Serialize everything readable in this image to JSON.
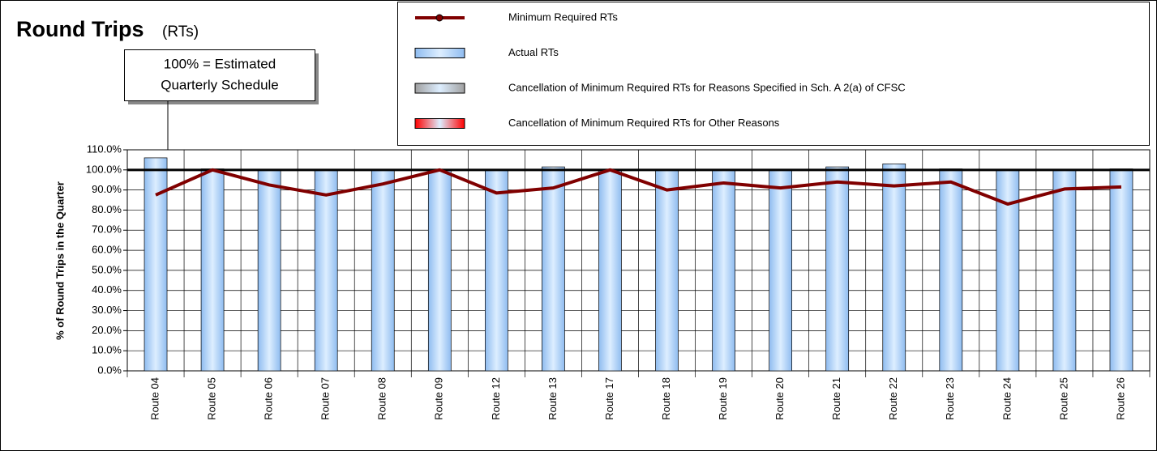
{
  "chart_data": {
    "type": "bar",
    "title": "Round Trips",
    "subtitle": "(RTs)",
    "y_axis_label": "% of Round Trips in the Quarter",
    "annotation": [
      "100% = Estimated",
      "Quarterly Schedule"
    ],
    "reference_line": 100,
    "categories": [
      "Route 04",
      "Route 05",
      "Route 06",
      "Route 07",
      "Route 08",
      "Route 09",
      "Route 12",
      "Route 13",
      "Route 17",
      "Route 18",
      "Route 19",
      "Route 20",
      "Route 21",
      "Route 22",
      "Route 23",
      "Route 24",
      "Route 25",
      "Route 26"
    ],
    "series": [
      {
        "name": "Minimum Required RTs",
        "type": "line",
        "color": "#800000",
        "values": [
          87.5,
          100,
          92.5,
          87.5,
          93,
          100,
          88.5,
          91,
          100,
          90,
          93.5,
          91,
          94,
          92,
          94,
          83,
          90.5,
          91.5
        ]
      },
      {
        "name": "Actual RTs",
        "type": "bar",
        "color": "#8fbcf0",
        "values": [
          106,
          100.5,
          100,
          100,
          100,
          100,
          100,
          101.5,
          100,
          100,
          100,
          100,
          101.5,
          103,
          100.5,
          100,
          100,
          100.5
        ]
      },
      {
        "name": "Cancellation of Minimum Required RTs for Reasons Specified in Sch. A 2(a) of CFSC",
        "type": "bar",
        "color": "#a0a0a0",
        "values": [
          0,
          0,
          0,
          0,
          0,
          0,
          0,
          0,
          0,
          0,
          0,
          0,
          0,
          0,
          0,
          0,
          0,
          0
        ]
      },
      {
        "name": "Cancellation of Minimum Required RTs for Other Reasons",
        "type": "bar",
        "color": "#ff0000",
        "values": [
          0,
          0,
          0,
          0,
          0,
          0,
          0,
          0,
          0,
          0,
          0,
          0,
          0,
          0,
          0,
          0,
          0,
          0
        ]
      }
    ],
    "ylim": [
      0,
      110
    ],
    "yticks": [
      {
        "value": 0,
        "label": "0.0%"
      },
      {
        "value": 10,
        "label": "10.0%"
      },
      {
        "value": 20,
        "label": "20.0%"
      },
      {
        "value": 30,
        "label": "30.0%"
      },
      {
        "value": 40,
        "label": "40.0%"
      },
      {
        "value": 50,
        "label": "50.0%"
      },
      {
        "value": 60,
        "label": "60.0%"
      },
      {
        "value": 70,
        "label": "70.0%"
      },
      {
        "value": 80,
        "label": "80.0%"
      },
      {
        "value": 90,
        "label": "90.0%"
      },
      {
        "value": 100,
        "label": "100.0%"
      },
      {
        "value": 110,
        "label": "110.0%"
      }
    ],
    "grid": true,
    "legend": "top-right"
  }
}
